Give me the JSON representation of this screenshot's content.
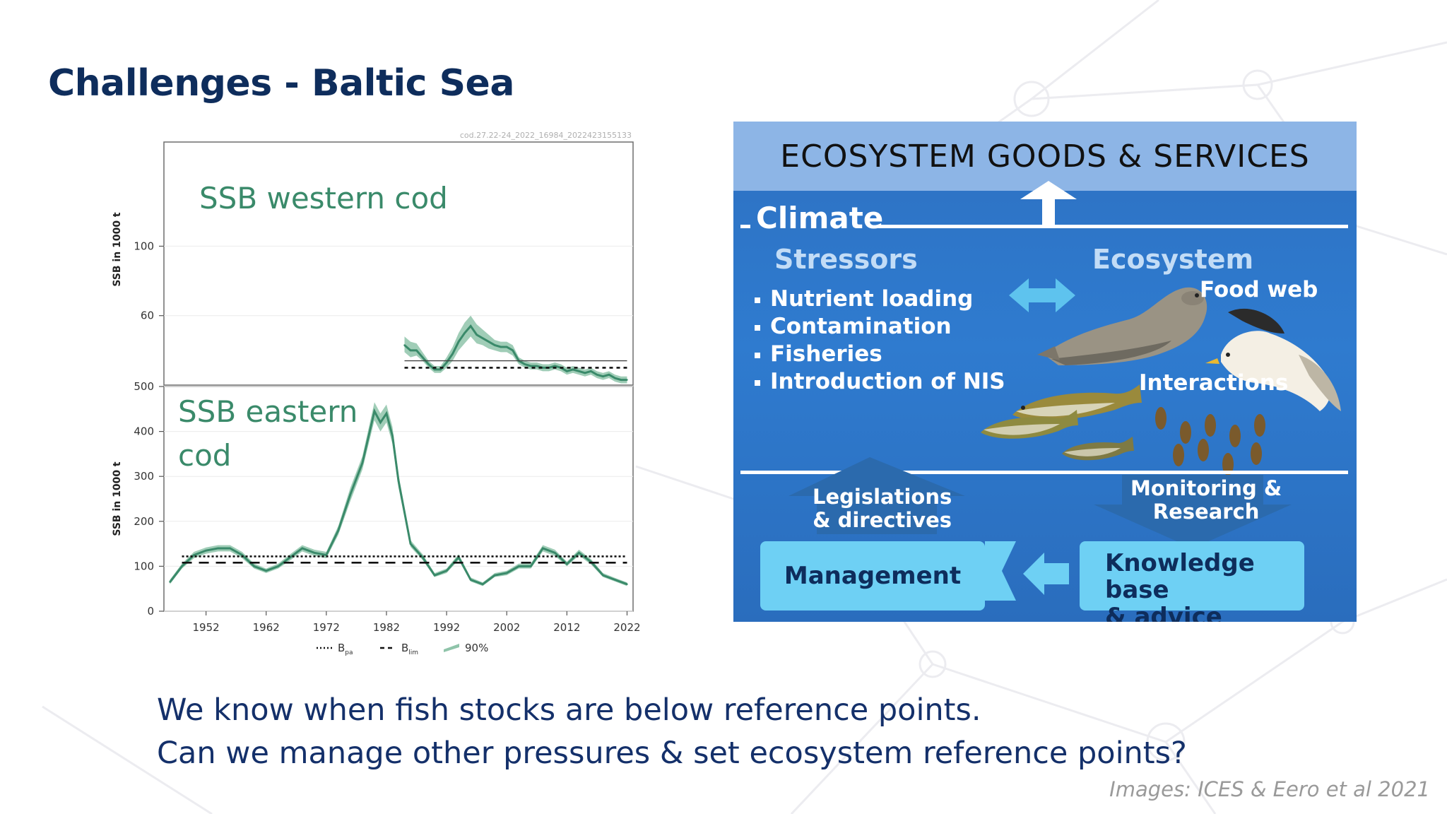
{
  "slide": {
    "title": "Challenges - Baltic Sea",
    "caption_lines": [
      "We know when fish stocks are below reference points.",
      "Can we manage other pressures & set ecosystem reference points?"
    ],
    "credit": "Images: ICES & Eero et al 2021"
  },
  "colors": {
    "title": "#0e2d5c",
    "series_green": "#3a8a6a",
    "band_green": "#8fc4aa",
    "panel_blue": "#2f7bcf",
    "header_light_blue": "#8db5e6",
    "box_cyan": "#6ed0f4"
  },
  "chart_data": [
    {
      "type": "area",
      "panel": "top",
      "source_tag": "cod.27.22-24_2022_16984_2022423155133",
      "title": "SSB western cod",
      "ylabel": "SSB in 1000 t",
      "y_ticks": [
        60,
        100
      ],
      "ylim": [
        20,
        160
      ],
      "xlim": [
        1945,
        2023
      ],
      "series": [
        {
          "name": "",
          "x": [
            1985,
            1986,
            1987,
            1988,
            1989,
            1990,
            1991,
            1992,
            1993,
            1994,
            1995,
            1996,
            1997,
            1998,
            1999,
            2000,
            2001,
            2002,
            2003,
            2004,
            2005,
            2006,
            2007,
            2008,
            2009,
            2010,
            2011,
            2012,
            2013,
            2014,
            2015,
            2016,
            2017,
            2018,
            2019,
            2020,
            2021,
            2022
          ],
          "values": [
            43,
            40,
            40,
            36,
            32,
            29,
            29,
            33,
            38,
            45,
            50,
            54,
            49,
            47,
            45,
            43,
            42,
            42,
            40,
            34,
            32,
            31,
            31,
            30,
            30,
            31,
            30,
            28,
            29,
            28,
            27,
            28,
            26,
            25,
            26,
            24,
            23,
            23
          ],
          "band_lower": [
            39,
            36,
            37,
            34,
            30,
            27,
            27,
            30,
            34,
            40,
            44,
            48,
            44,
            43,
            41,
            40,
            39,
            39,
            37,
            32,
            30,
            29,
            29,
            28,
            28,
            29,
            28,
            26,
            27,
            26,
            25,
            26,
            24,
            23,
            24,
            22,
            21,
            21
          ],
          "band_upper": [
            48,
            45,
            44,
            39,
            34,
            31,
            31,
            36,
            42,
            50,
            56,
            60,
            55,
            52,
            49,
            46,
            45,
            45,
            43,
            36,
            34,
            33,
            33,
            32,
            32,
            33,
            32,
            30,
            31,
            30,
            29,
            30,
            28,
            27,
            28,
            26,
            25,
            25
          ]
        }
      ],
      "reference_lines": [
        {
          "style": "solid",
          "value": 34,
          "x_range": [
            1985,
            2022
          ]
        },
        {
          "style": "dashed",
          "value": 30,
          "x_range": [
            1985,
            2022
          ]
        }
      ]
    },
    {
      "type": "area",
      "panel": "bottom",
      "title": "SSB eastern cod",
      "ylabel": "SSB in 1000 t",
      "y_ticks": [
        0,
        100,
        200,
        300,
        400,
        500
      ],
      "ylim": [
        0,
        500
      ],
      "x_ticks": [
        1952,
        1962,
        1972,
        1982,
        1992,
        2002,
        2012,
        2022
      ],
      "xlim": [
        1945,
        2023
      ],
      "series": [
        {
          "name": "",
          "x": [
            1946,
            1948,
            1950,
            1952,
            1954,
            1956,
            1958,
            1960,
            1962,
            1964,
            1966,
            1968,
            1970,
            1972,
            1974,
            1976,
            1978,
            1980,
            1981,
            1982,
            1983,
            1984,
            1986,
            1988,
            1990,
            1992,
            1994,
            1996,
            1998,
            2000,
            2002,
            2004,
            2006,
            2008,
            2010,
            2012,
            2014,
            2016,
            2018,
            2020,
            2022
          ],
          "values": [
            65,
            100,
            125,
            135,
            140,
            140,
            125,
            100,
            90,
            100,
            120,
            140,
            130,
            125,
            180,
            260,
            330,
            445,
            420,
            440,
            390,
            290,
            150,
            120,
            80,
            90,
            120,
            70,
            60,
            80,
            85,
            100,
            100,
            140,
            130,
            105,
            130,
            110,
            80,
            70,
            60
          ],
          "band_lower": [
            60,
            95,
            118,
            128,
            133,
            133,
            118,
            95,
            85,
            95,
            113,
            133,
            123,
            118,
            170,
            245,
            315,
            425,
            400,
            420,
            372,
            275,
            143,
            114,
            76,
            85,
            114,
            66,
            56,
            76,
            80,
            95,
            95,
            133,
            123,
            100,
            124,
            104,
            76,
            66,
            56
          ],
          "band_upper": [
            70,
            106,
            132,
            142,
            147,
            147,
            132,
            106,
            95,
            106,
            127,
            147,
            137,
            132,
            190,
            275,
            345,
            465,
            440,
            460,
            410,
            305,
            158,
            127,
            85,
            95,
            127,
            75,
            64,
            85,
            90,
            106,
            106,
            147,
            137,
            110,
            137,
            116,
            85,
            74,
            64
          ]
        }
      ],
      "reference_lines": [
        {
          "style": "dotted",
          "value": 122,
          "x_range": [
            1948,
            2022
          ]
        },
        {
          "style": "dashed",
          "value": 108,
          "x_range": [
            1948,
            2022
          ]
        }
      ],
      "legend": {
        "placement": "bottom",
        "entries": [
          {
            "style": "dotted",
            "label": "B",
            "sub": "pa"
          },
          {
            "style": "dashed",
            "label": "B",
            "sub": "lim"
          },
          {
            "style": "band",
            "label": "90%"
          }
        ]
      }
    }
  ],
  "eco": {
    "header": "ECOSYSTEM GOODS & SERVICES",
    "climate": "Climate",
    "stressors_title": "Stressors",
    "stressors": [
      "Nutrient loading",
      "Contamination",
      "Fisheries",
      "Introduction of NIS"
    ],
    "ecosystem_title": "Ecosystem",
    "food_web": "Food web",
    "interactions": "Interactions",
    "legislations": [
      "Legislations",
      "& directives"
    ],
    "monitoring": [
      "Monitoring &",
      "Research"
    ],
    "management": "Management",
    "knowledge": [
      "Knowledge base",
      "& advice"
    ]
  }
}
